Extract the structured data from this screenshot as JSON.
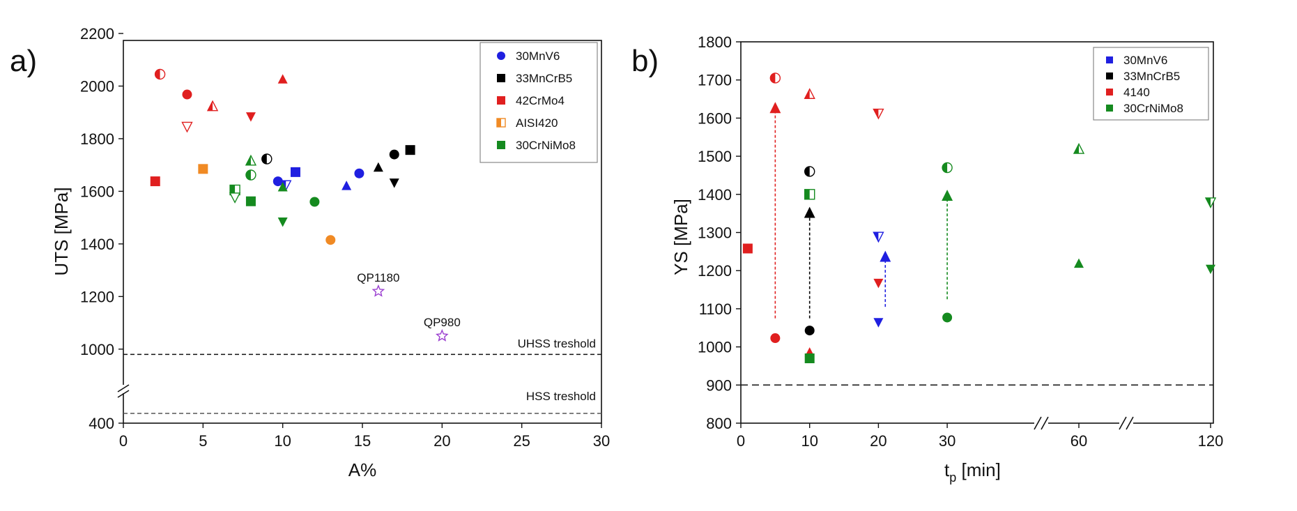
{
  "chart_data": [
    {
      "type": "scatter",
      "panel_label": "a)",
      "xlabel": "A%",
      "ylabel": "UTS [MPa]",
      "xlim": [
        0,
        30
      ],
      "xticks": [
        "0",
        "5",
        "10",
        "15",
        "20",
        "25",
        "30"
      ],
      "yticks": [
        "400",
        "1000",
        "1200",
        "1400",
        "1600",
        "1800",
        "2000",
        "2200"
      ],
      "y_axis_break": {
        "lower_value": 400,
        "upper_range": [
          920,
          2200
        ]
      },
      "legend": {
        "position": "top-right",
        "entries": [
          {
            "label": "30MnV6",
            "marker": "circle",
            "color": "#1f1fe0"
          },
          {
            "label": "33MnCrB5",
            "marker": "square",
            "color": "#000000"
          },
          {
            "label": "42CrMo4",
            "marker": "square",
            "color": "#e01f1f"
          },
          {
            "label": "AISI420",
            "marker": "square-half",
            "color": "#f08a24"
          },
          {
            "label": "30CrNiMo8",
            "marker": "square",
            "color": "#158a1f"
          }
        ]
      },
      "series": [
        {
          "name": "30MnV6",
          "color": "#1f1fe0",
          "points": [
            {
              "x": 9.7,
              "y": 1638,
              "m": "circle"
            },
            {
              "x": 10.2,
              "y": 1625,
              "m": "tri-down-half"
            },
            {
              "x": 10.8,
              "y": 1673,
              "m": "square"
            },
            {
              "x": 14,
              "y": 1620,
              "m": "tri-up"
            },
            {
              "x": 14.8,
              "y": 1668,
              "m": "circle"
            }
          ]
        },
        {
          "name": "33MnCrB5",
          "color": "#000000",
          "points": [
            {
              "x": 9,
              "y": 1723,
              "m": "circle-half"
            },
            {
              "x": 16,
              "y": 1690,
              "m": "tri-up"
            },
            {
              "x": 17,
              "y": 1740,
              "m": "circle"
            },
            {
              "x": 17,
              "y": 1633,
              "m": "tri-down"
            },
            {
              "x": 18,
              "y": 1757,
              "m": "square"
            }
          ]
        },
        {
          "name": "42CrMo4",
          "color": "#e01f1f",
          "points": [
            {
              "x": 2,
              "y": 1638,
              "m": "square"
            },
            {
              "x": 2.3,
              "y": 2045,
              "m": "circle-half"
            },
            {
              "x": 4,
              "y": 1968,
              "m": "circle"
            },
            {
              "x": 4,
              "y": 1847,
              "m": "tri-down-open"
            },
            {
              "x": 5.6,
              "y": 1922,
              "m": "tri-up-half"
            },
            {
              "x": 8,
              "y": 1885,
              "m": "tri-down"
            },
            {
              "x": 10,
              "y": 2025,
              "m": "tri-up"
            }
          ]
        },
        {
          "name": "AISI420",
          "color": "#f08a24",
          "points": [
            {
              "x": 5,
              "y": 1685,
              "m": "square"
            },
            {
              "x": 13,
              "y": 1415,
              "m": "circle"
            }
          ]
        },
        {
          "name": "30CrNiMo8",
          "color": "#158a1f",
          "points": [
            {
              "x": 7,
              "y": 1605,
              "m": "square-half"
            },
            {
              "x": 7,
              "y": 1578,
              "m": "tri-down-open"
            },
            {
              "x": 8,
              "y": 1715,
              "m": "tri-up-half"
            },
            {
              "x": 8,
              "y": 1662,
              "m": "circle-half"
            },
            {
              "x": 8,
              "y": 1562,
              "m": "square"
            },
            {
              "x": 10,
              "y": 1615,
              "m": "tri-up"
            },
            {
              "x": 10,
              "y": 1485,
              "m": "tri-down"
            },
            {
              "x": 12,
              "y": 1560,
              "m": "circle"
            }
          ]
        },
        {
          "name": "reference",
          "color": "#9b3fd0",
          "points": [
            {
              "x": 16,
              "y": 1220,
              "m": "star",
              "label": "QP1180"
            },
            {
              "x": 20,
              "y": 1050,
              "m": "star",
              "label": "QP980"
            }
          ]
        }
      ],
      "reference_lines": [
        {
          "y": 980,
          "label": "UHSS treshold"
        },
        {
          "y": "lower_section",
          "label": "HSS treshold"
        }
      ]
    },
    {
      "type": "scatter",
      "panel_label": "b)",
      "xlabel_main": "t",
      "xlabel_sub": "p",
      "xlabel_rest": " [min]",
      "ylabel": "YS [MPa]",
      "ylim": [
        800,
        1800
      ],
      "xtick_labels": [
        "0",
        "10",
        "20",
        "30",
        "60",
        "120"
      ],
      "yticks": [
        "800",
        "900",
        "1000",
        "1100",
        "1200",
        "1300",
        "1400",
        "1500",
        "1600",
        "1700",
        "1800"
      ],
      "x_axis_breaks": [
        "30-60",
        "60-120"
      ],
      "legend": {
        "position": "top-right",
        "entries": [
          {
            "label": "30MnV6",
            "marker": "square",
            "color": "#1f1fe0"
          },
          {
            "label": "33MnCrB5",
            "marker": "square",
            "color": "#000000"
          },
          {
            "label": "4140",
            "marker": "square",
            "color": "#e01f1f"
          },
          {
            "label": "30CrNiMo8",
            "marker": "square",
            "color": "#158a1f"
          }
        ]
      },
      "series": [
        {
          "name": "30MnV6",
          "color": "#1f1fe0",
          "points": [
            {
              "x": 20,
              "y": 1065,
              "m": "tri-down"
            },
            {
              "x": 20,
              "y": 1290,
              "m": "tri-down-half"
            }
          ]
        },
        {
          "name": "33MnCrB5",
          "color": "#000000",
          "points": [
            {
              "x": 10,
              "y": 1043,
              "m": "circle"
            },
            {
              "x": 10,
              "y": 1460,
              "m": "circle-half"
            }
          ]
        },
        {
          "name": "4140",
          "color": "#e01f1f",
          "points": [
            {
              "x": 1,
              "y": 1258,
              "m": "square"
            },
            {
              "x": 5,
              "y": 1023,
              "m": "circle"
            },
            {
              "x": 5,
              "y": 1705,
              "m": "circle-half"
            },
            {
              "x": 10,
              "y": 985,
              "m": "tri-up"
            },
            {
              "x": 10,
              "y": 1662,
              "m": "tri-up-half"
            },
            {
              "x": 20,
              "y": 1168,
              "m": "tri-down"
            },
            {
              "x": 20,
              "y": 1613,
              "m": "tri-down-half"
            }
          ]
        },
        {
          "name": "30CrNiMo8",
          "color": "#158a1f",
          "points": [
            {
              "x": 10,
              "y": 970,
              "m": "square"
            },
            {
              "x": 10,
              "y": 1400,
              "m": "square-half"
            },
            {
              "x": 30,
              "y": 1077,
              "m": "circle"
            },
            {
              "x": 30,
              "y": 1470,
              "m": "circle-half"
            },
            {
              "x": 60,
              "y": 1218,
              "m": "tri-up"
            },
            {
              "x": 60,
              "y": 1518,
              "m": "tri-up-half"
            },
            {
              "x": 120,
              "y": 1205,
              "m": "tri-down"
            },
            {
              "x": 120,
              "y": 1380,
              "m": "tri-down-half"
            }
          ]
        }
      ],
      "arrows": [
        {
          "x": 5,
          "y_from": 1075,
          "y_to": 1635,
          "color": "#e01f1f"
        },
        {
          "x": 10,
          "y_from": 1075,
          "y_to": 1360,
          "color": "#000000"
        },
        {
          "x": 21,
          "y_from": 1105,
          "y_to": 1245,
          "color": "#1f1fe0"
        },
        {
          "x": 30,
          "y_from": 1125,
          "y_to": 1405,
          "color": "#158a1f"
        }
      ],
      "reference_lines": [
        {
          "y": 900
        }
      ]
    }
  ]
}
